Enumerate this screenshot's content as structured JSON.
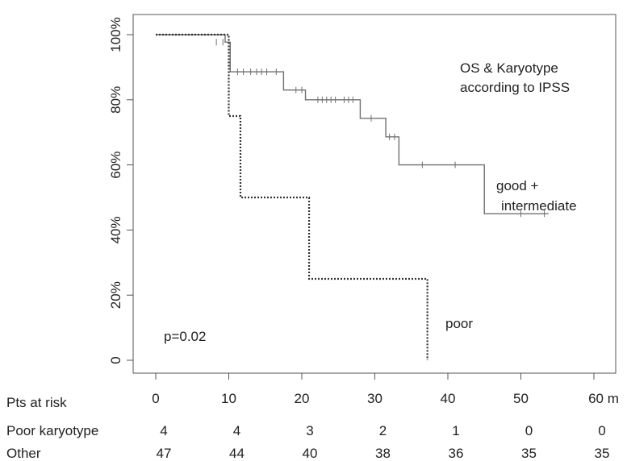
{
  "chart_data": {
    "type": "line",
    "title": "",
    "xlabel": "",
    "ylabel": "",
    "xlim": [
      0,
      60
    ],
    "ylim": [
      0,
      100
    ],
    "x_ticks": [
      "0",
      "10",
      "20",
      "30",
      "40",
      "50",
      "60 m"
    ],
    "y_ticks": [
      "0",
      "20%",
      "40%",
      "60%",
      "80%",
      "100%"
    ],
    "grid": false,
    "annotations": {
      "title_line1": "OS & Karyotype",
      "title_line2": "according to IPSS",
      "p_value": "p=0.02",
      "label_good_line1": "good +",
      "label_good_line2": "intermediate",
      "label_poor": "poor"
    },
    "series": [
      {
        "style": "solid",
        "color": "#707070",
        "steps": [
          [
            0,
            100
          ],
          [
            9.5,
            97.7
          ],
          [
            10.2,
            88.6
          ],
          [
            17.5,
            83
          ],
          [
            20.5,
            80
          ],
          [
            28,
            74.3
          ],
          [
            31.5,
            68.6
          ],
          [
            33.3,
            60
          ],
          [
            45,
            45
          ],
          [
            53.8,
            45
          ]
        ],
        "censors": [
          [
            8.3,
            97.7
          ],
          [
            9.2,
            97.7
          ],
          [
            11.2,
            88.6
          ],
          [
            12,
            88.6
          ],
          [
            13,
            88.6
          ],
          [
            13.8,
            88.6
          ],
          [
            14.5,
            88.6
          ],
          [
            15.2,
            88.6
          ],
          [
            16.5,
            88.6
          ],
          [
            19.2,
            83
          ],
          [
            20,
            83
          ],
          [
            22.2,
            80
          ],
          [
            22.8,
            80
          ],
          [
            23.4,
            80
          ],
          [
            24,
            80
          ],
          [
            24.6,
            80
          ],
          [
            25.8,
            80
          ],
          [
            26.4,
            80
          ],
          [
            27,
            80
          ],
          [
            29.5,
            74.3
          ],
          [
            32,
            68.6
          ],
          [
            32.7,
            68.6
          ],
          [
            36.5,
            60
          ],
          [
            41,
            60
          ],
          [
            50,
            45
          ],
          [
            53.2,
            45
          ]
        ]
      },
      {
        "style": "dotted",
        "color": "#333333",
        "steps": [
          [
            0,
            100
          ],
          [
            10,
            75
          ],
          [
            11.6,
            50
          ],
          [
            21,
            25
          ],
          [
            37.2,
            0
          ]
        ],
        "censors": []
      }
    ],
    "risk_table": {
      "header": "Pts at risk",
      "times": [
        0,
        10,
        20,
        30,
        40,
        50,
        60
      ],
      "rows": [
        {
          "label": "Poor karyotype",
          "values": [
            "4",
            "4",
            "3",
            "2",
            "1",
            "0",
            "0"
          ]
        },
        {
          "label": "Other",
          "values": [
            "47",
            "44",
            "40",
            "38",
            "36",
            "35",
            "35"
          ]
        }
      ]
    }
  }
}
